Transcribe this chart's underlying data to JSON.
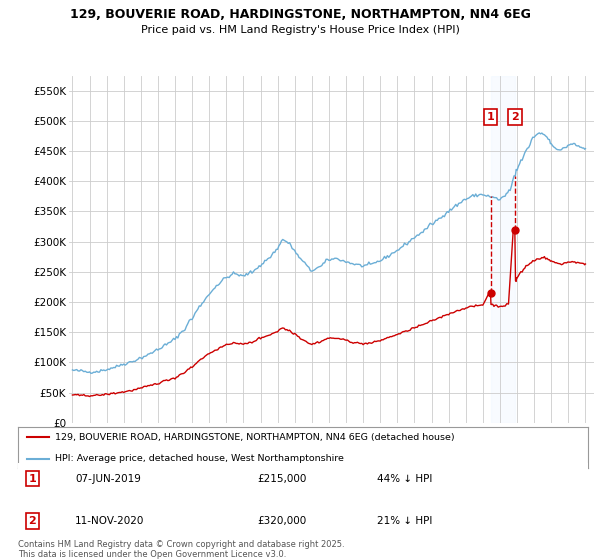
{
  "title_line1": "129, BOUVERIE ROAD, HARDINGSTONE, NORTHAMPTON, NN4 6EG",
  "title_line2": "Price paid vs. HM Land Registry's House Price Index (HPI)",
  "ylim": [
    0,
    575000
  ],
  "yticks": [
    0,
    50000,
    100000,
    150000,
    200000,
    250000,
    300000,
    350000,
    400000,
    450000,
    500000,
    550000
  ],
  "ytick_labels": [
    "£0",
    "£50K",
    "£100K",
    "£150K",
    "£200K",
    "£250K",
    "£300K",
    "£350K",
    "£400K",
    "£450K",
    "£500K",
    "£550K"
  ],
  "hpi_color": "#6baed6",
  "sold_color": "#cc0000",
  "background_color": "#ffffff",
  "grid_color": "#cccccc",
  "shade_color": "#ddeeff",
  "t1_x": 2019.458,
  "t1_price": 215000,
  "t1_hpi": 375000,
  "t2_x": 2020.875,
  "t2_price": 320000,
  "t2_hpi": 408000,
  "transaction1": {
    "date": "07-JUN-2019",
    "price": 215000,
    "hpi_pct": "44% ↓ HPI",
    "label": "1"
  },
  "transaction2": {
    "date": "11-NOV-2020",
    "price": 320000,
    "hpi_pct": "21% ↓ HPI",
    "label": "2"
  },
  "legend_line1": "129, BOUVERIE ROAD, HARDINGSTONE, NORTHAMPTON, NN4 6EG (detached house)",
  "legend_line2": "HPI: Average price, detached house, West Northamptonshire",
  "footnote": "Contains HM Land Registry data © Crown copyright and database right 2025.\nThis data is licensed under the Open Government Licence v3.0.",
  "xlim_start": 1994.8,
  "xlim_end": 2025.5
}
